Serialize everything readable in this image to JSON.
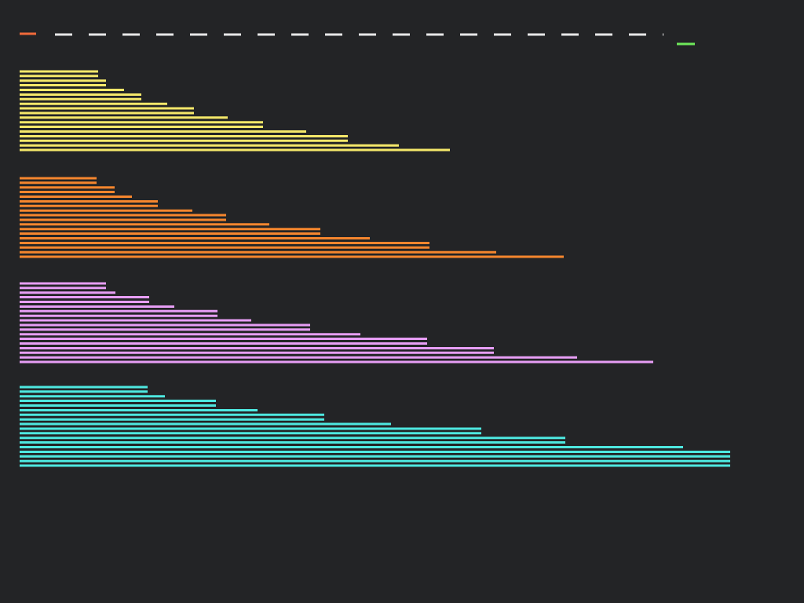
{
  "chart_data": [
    {
      "type": "bar",
      "orientation": "horizontal",
      "color": "#f5e86a",
      "tick_labels": false,
      "grid": false,
      "categories": [
        null,
        null,
        null,
        null,
        null,
        null,
        null,
        null,
        null,
        null,
        null,
        null,
        null,
        null,
        null,
        null,
        null,
        null
      ],
      "values": [
        100,
        100,
        110,
        110,
        133,
        155,
        155,
        188,
        222,
        222,
        265,
        310,
        310,
        365,
        418,
        418,
        483,
        548
      ],
      "xlim": [
        0,
        910
      ]
    },
    {
      "type": "bar",
      "orientation": "horizontal",
      "color": "#f5862e",
      "tick_labels": false,
      "grid": false,
      "categories": [
        null,
        null,
        null,
        null,
        null,
        null,
        null,
        null,
        null,
        null,
        null,
        null,
        null,
        null,
        null,
        null,
        null,
        null
      ],
      "values": [
        98,
        98,
        121,
        121,
        143,
        176,
        176,
        220,
        263,
        263,
        318,
        383,
        383,
        446,
        522,
        522,
        607,
        693
      ],
      "xlim": [
        0,
        910
      ]
    },
    {
      "type": "bar",
      "orientation": "horizontal",
      "color": "#e79ef5",
      "tick_labels": false,
      "grid": false,
      "categories": [
        null,
        null,
        null,
        null,
        null,
        null,
        null,
        null,
        null,
        null,
        null,
        null,
        null,
        null,
        null,
        null,
        null,
        null
      ],
      "values": [
        110,
        110,
        122,
        165,
        165,
        197,
        252,
        252,
        295,
        370,
        370,
        434,
        519,
        519,
        604,
        604,
        710,
        807
      ],
      "xlim": [
        0,
        910
      ]
    },
    {
      "type": "bar",
      "orientation": "horizontal",
      "color": "#4ee8e0",
      "tick_labels": false,
      "grid": false,
      "categories": [
        null,
        null,
        null,
        null,
        null,
        null,
        null,
        null,
        null,
        null,
        null,
        null,
        null,
        null,
        null,
        null,
        null,
        null
      ],
      "values": [
        163,
        163,
        185,
        250,
        250,
        303,
        388,
        388,
        473,
        588,
        588,
        695,
        695,
        845,
        905,
        905,
        905,
        905
      ],
      "xlim": [
        0,
        910
      ]
    }
  ]
}
